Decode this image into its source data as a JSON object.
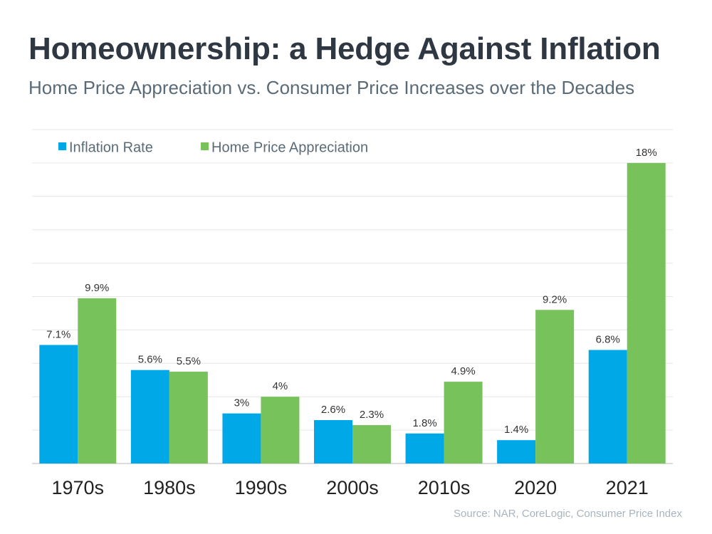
{
  "header": {
    "title": "Homeownership: a Hedge Against Inflation",
    "subtitle": "Home Price Appreciation vs. Consumer Price Increases over the Decades"
  },
  "footer": {
    "source": "Source: NAR, CoreLogic, Consumer Price Index"
  },
  "chart_data": {
    "type": "bar",
    "title": "",
    "xlabel": "",
    "ylabel": "",
    "categories": [
      "1970s",
      "1980s",
      "1990s",
      "2000s",
      "2010s",
      "2020",
      "2021"
    ],
    "series": [
      {
        "name": "Inflation Rate",
        "color": "#00a8e8",
        "values": [
          7.1,
          5.6,
          3,
          2.6,
          1.8,
          1.4,
          6.8
        ],
        "labels": [
          "7.1%",
          "5.6%",
          "3%",
          "2.6%",
          "1.8%",
          "1.4%",
          "6.8%"
        ]
      },
      {
        "name": "Home Price Appreciation",
        "color": "#77c25a",
        "values": [
          9.9,
          5.5,
          4,
          2.3,
          4.9,
          9.2,
          18
        ],
        "labels": [
          "9.9%",
          "5.5%",
          "4%",
          "2.3%",
          "4.9%",
          "9.2%",
          "18%"
        ]
      }
    ],
    "ylim": [
      0,
      20
    ],
    "y_gridline_step": 2,
    "grid": true,
    "legend": "top-left",
    "gridline_color": "#e6e6e6",
    "axis_color": "#d0d0d0"
  }
}
